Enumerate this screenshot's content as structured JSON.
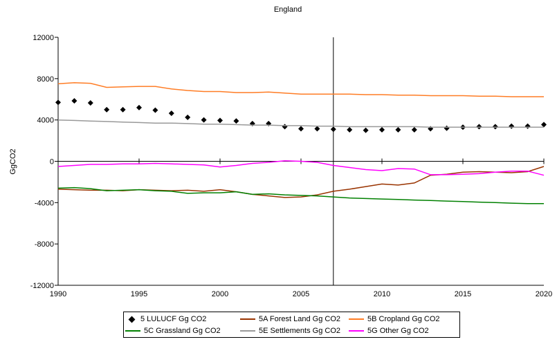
{
  "chart_data": {
    "type": "line",
    "title": "England",
    "xlabel": "",
    "ylabel": "GgCO2",
    "xlim": [
      1990,
      2020
    ],
    "ylim": [
      -12000,
      12000
    ],
    "x_ticks": [
      "1990",
      "1995",
      "2000",
      "2005",
      "2010",
      "2015",
      "2020"
    ],
    "y_ticks": [
      "12000",
      "8000",
      "4000",
      "0",
      "-4000",
      "-8000",
      "-12000"
    ],
    "grid": false,
    "legend_position": "bottom",
    "vertical_marker_x": 2007,
    "x": [
      1990,
      1991,
      1992,
      1993,
      1994,
      1995,
      1996,
      1997,
      1998,
      1999,
      2000,
      2001,
      2002,
      2003,
      2004,
      2005,
      2006,
      2007,
      2008,
      2009,
      2010,
      2011,
      2012,
      2013,
      2014,
      2015,
      2016,
      2017,
      2018,
      2019,
      2020
    ],
    "series": [
      {
        "name": "5 LULUCF Gg CO2",
        "style": "markers",
        "color": "#000000",
        "values": [
          5700,
          5850,
          5650,
          5000,
          5000,
          5200,
          4950,
          4650,
          4250,
          4000,
          3950,
          3900,
          3650,
          3650,
          3350,
          3150,
          3150,
          3100,
          3050,
          3000,
          3050,
          3050,
          3050,
          3150,
          3200,
          3300,
          3350,
          3350,
          3400,
          3400,
          3550
        ]
      },
      {
        "name": "5A Forest Land Gg CO2",
        "style": "line",
        "color": "#993300",
        "values": [
          -2700,
          -2750,
          -2800,
          -2800,
          -2850,
          -2750,
          -2800,
          -2850,
          -2800,
          -2900,
          -2750,
          -2950,
          -3200,
          -3350,
          -3500,
          -3450,
          -3250,
          -2900,
          -2700,
          -2450,
          -2200,
          -2300,
          -2100,
          -1350,
          -1250,
          -1050,
          -1000,
          -1050,
          -1100,
          -1000,
          -500
        ]
      },
      {
        "name": "5B Cropland Gg CO2",
        "style": "line",
        "color": "#ff7c24",
        "values": [
          7500,
          7600,
          7550,
          7150,
          7200,
          7250,
          7250,
          7000,
          6850,
          6750,
          6750,
          6650,
          6650,
          6700,
          6600,
          6500,
          6500,
          6500,
          6500,
          6450,
          6450,
          6400,
          6400,
          6350,
          6350,
          6350,
          6300,
          6300,
          6250,
          6250,
          6250
        ]
      },
      {
        "name": "5C Grassland Gg CO2",
        "style": "line",
        "color": "#008000",
        "values": [
          -2600,
          -2550,
          -2650,
          -2850,
          -2800,
          -2750,
          -2850,
          -2900,
          -3100,
          -3050,
          -3050,
          -2950,
          -3200,
          -3150,
          -3250,
          -3300,
          -3350,
          -3450,
          -3550,
          -3600,
          -3650,
          -3700,
          -3750,
          -3800,
          -3850,
          -3900,
          -3950,
          -4000,
          -4050,
          -4100,
          -4100
        ]
      },
      {
        "name": "5E Settlements Gg CO2",
        "style": "line",
        "color": "#999999",
        "values": [
          4000,
          3950,
          3900,
          3850,
          3800,
          3750,
          3700,
          3700,
          3650,
          3600,
          3600,
          3550,
          3500,
          3500,
          3450,
          3450,
          3400,
          3400,
          3350,
          3350,
          3350,
          3350,
          3350,
          3300,
          3300,
          3300,
          3300,
          3300,
          3300,
          3300,
          3300
        ]
      },
      {
        "name": "5G Other Gg CO2",
        "style": "line",
        "color": "#ff00ff",
        "values": [
          -500,
          -400,
          -300,
          -300,
          -250,
          -250,
          -200,
          -250,
          -300,
          -350,
          -550,
          -400,
          -200,
          -100,
          50,
          0,
          -100,
          -400,
          -600,
          -800,
          -900,
          -700,
          -750,
          -1300,
          -1300,
          -1250,
          -1200,
          -1050,
          -950,
          -950,
          -1350
        ]
      }
    ]
  }
}
